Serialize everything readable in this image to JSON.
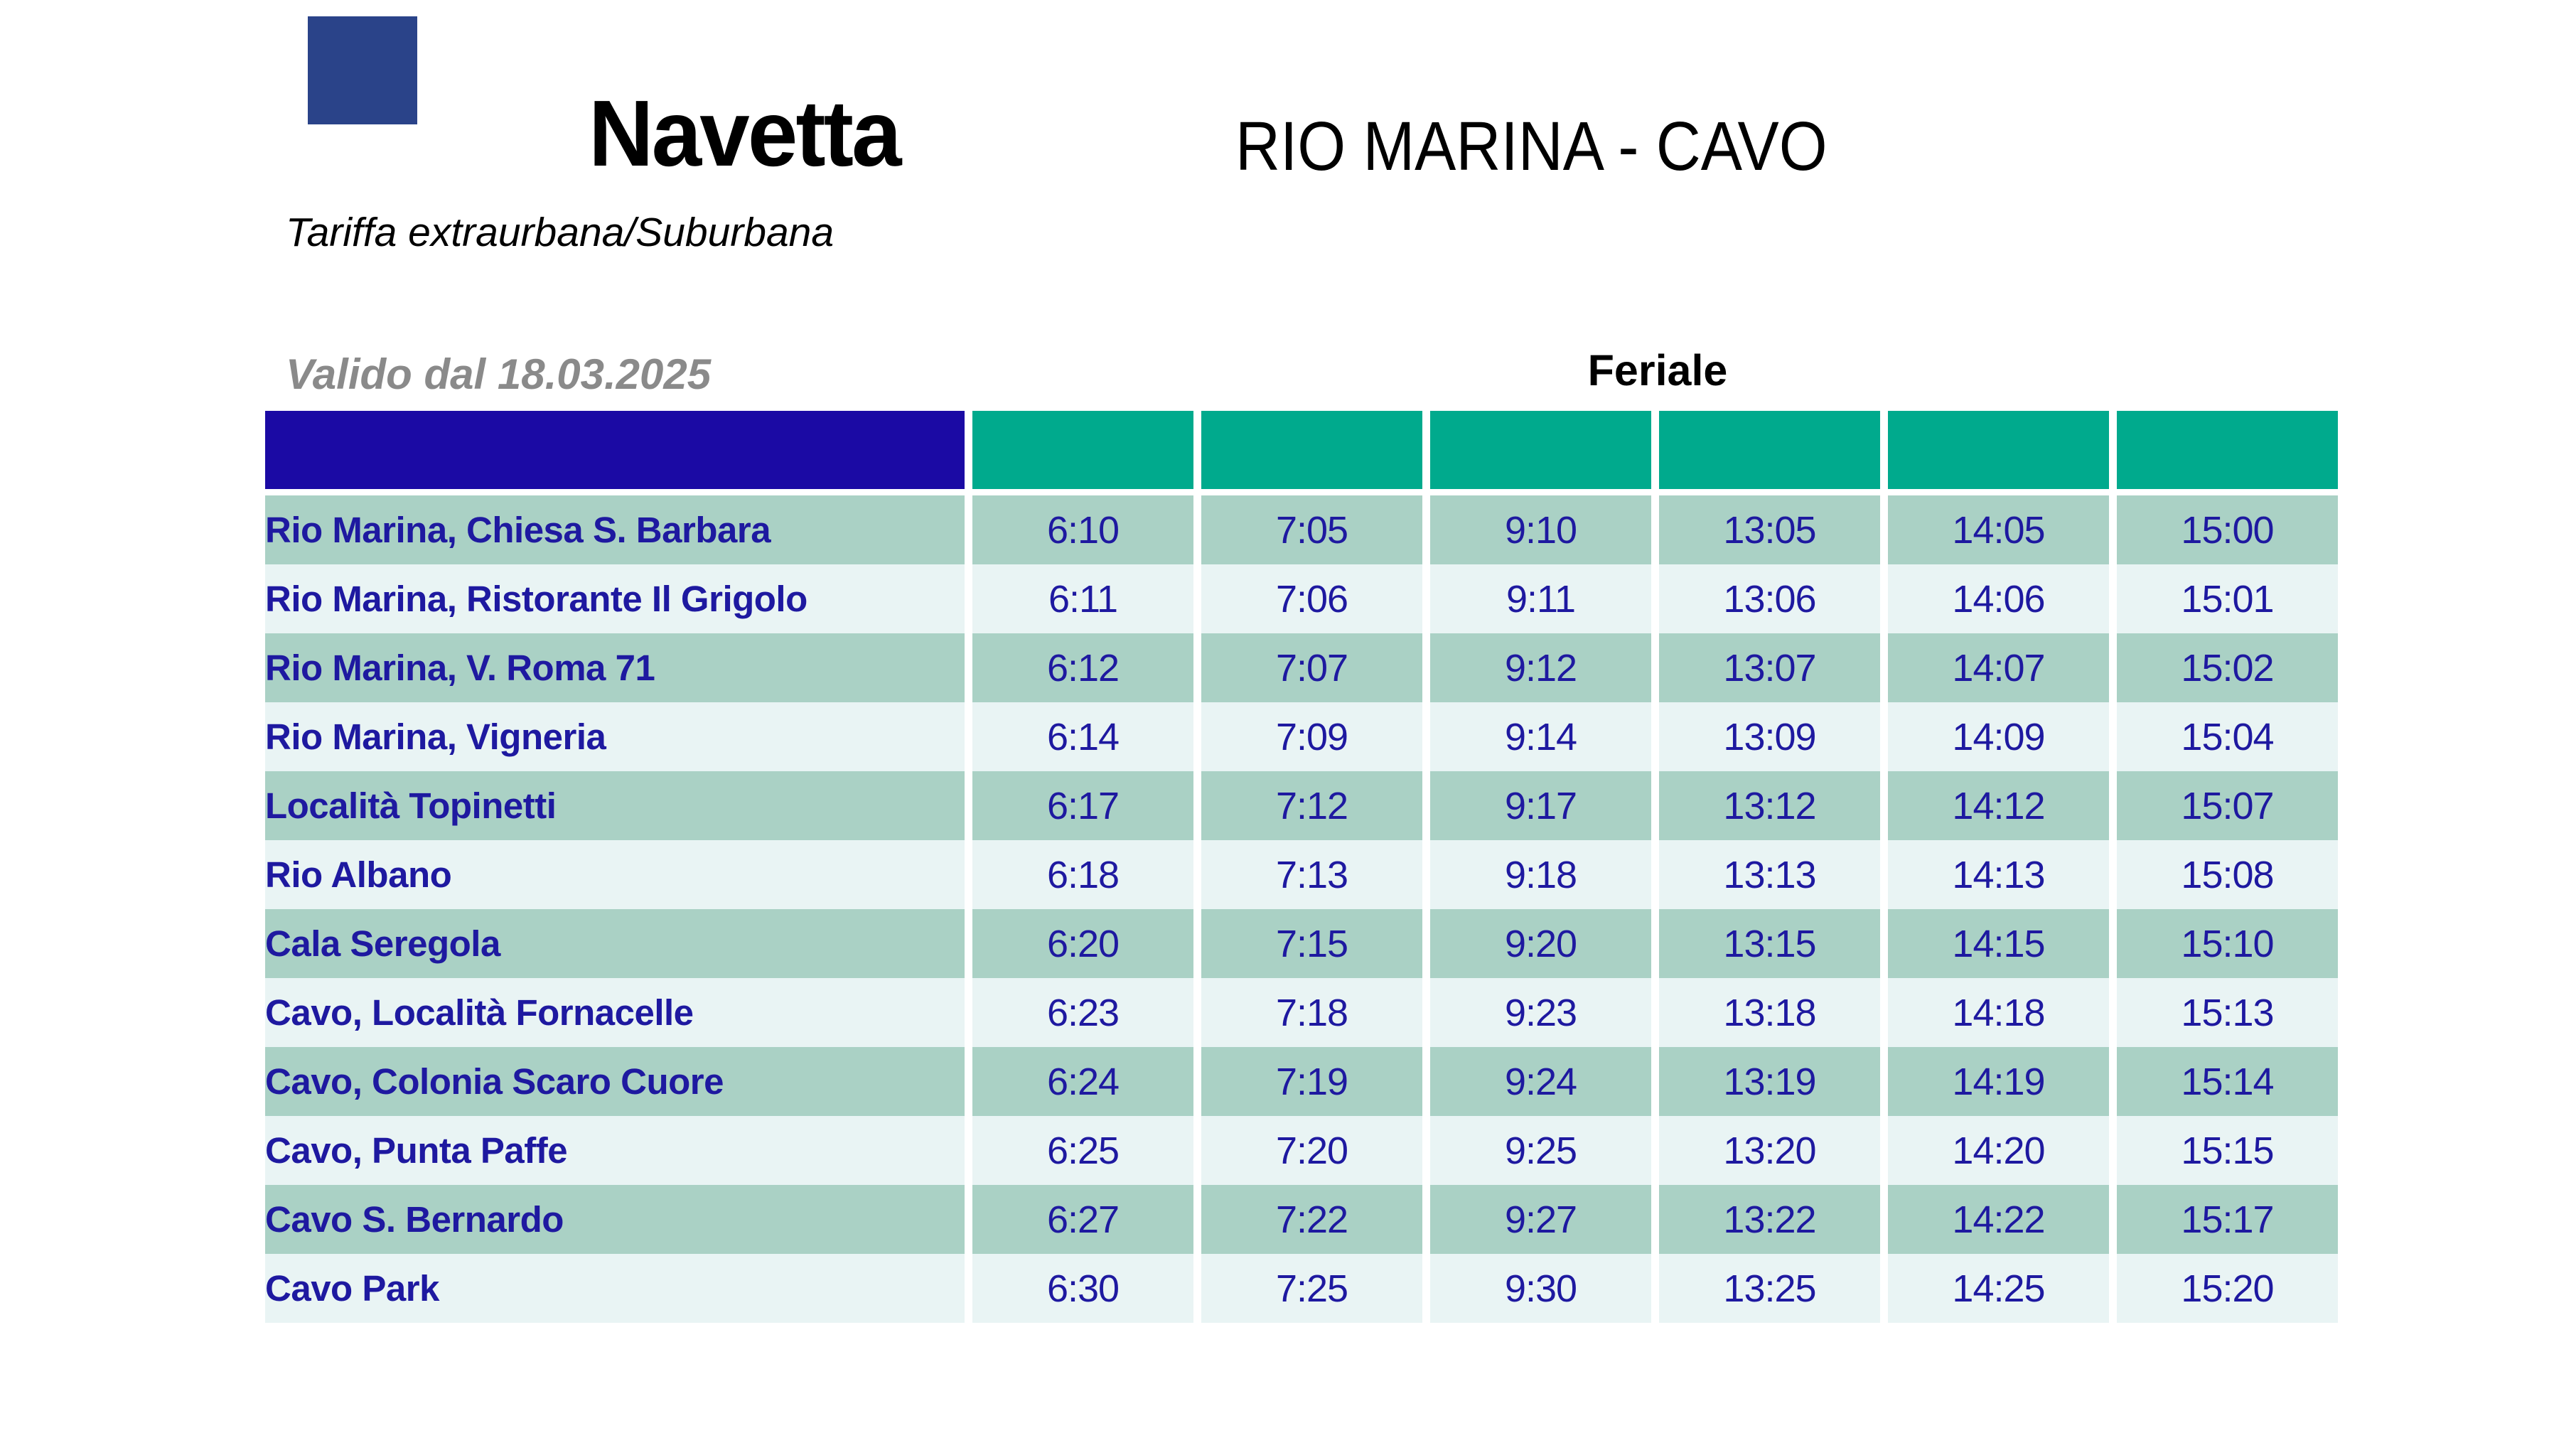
{
  "header": {
    "title": "Navetta",
    "subtitle": "Tariffa extraurbana/Suburbana",
    "route": "RIO MARINA - CAVO",
    "valid_from": "Valido dal 18.03.2025",
    "service_type": "Feriale"
  },
  "colors": {
    "stub_header": "#1B0AA4",
    "time_header": "#00AA8D",
    "row_even": "#AAD1C5",
    "row_odd": "#E9F4F4",
    "text_navy": "#1E19A0",
    "logo_blue": "#2A4389",
    "muted_gray": "#8A8A8A"
  },
  "table": {
    "time_column_headers": [
      "",
      "",
      "",
      "",
      "",
      ""
    ],
    "rows": [
      {
        "stop": "Rio Marina, Chiesa S. Barbara",
        "times": [
          "6:10",
          "7:05",
          "9:10",
          "13:05",
          "14:05",
          "15:00"
        ]
      },
      {
        "stop": "Rio Marina, Ristorante Il Grigolo",
        "times": [
          "6:11",
          "7:06",
          "9:11",
          "13:06",
          "14:06",
          "15:01"
        ]
      },
      {
        "stop": "Rio Marina, V. Roma 71",
        "times": [
          "6:12",
          "7:07",
          "9:12",
          "13:07",
          "14:07",
          "15:02"
        ]
      },
      {
        "stop": "Rio Marina, Vigneria",
        "times": [
          "6:14",
          "7:09",
          "9:14",
          "13:09",
          "14:09",
          "15:04"
        ]
      },
      {
        "stop": "Località Topinetti",
        "times": [
          "6:17",
          "7:12",
          "9:17",
          "13:12",
          "14:12",
          "15:07"
        ]
      },
      {
        "stop": "Rio Albano",
        "times": [
          "6:18",
          "7:13",
          "9:18",
          "13:13",
          "14:13",
          "15:08"
        ]
      },
      {
        "stop": "Cala Seregola",
        "times": [
          "6:20",
          "7:15",
          "9:20",
          "13:15",
          "14:15",
          "15:10"
        ]
      },
      {
        "stop": "Cavo, Località Fornacelle",
        "times": [
          "6:23",
          "7:18",
          "9:23",
          "13:18",
          "14:18",
          "15:13"
        ]
      },
      {
        "stop": "Cavo, Colonia Scaro Cuore",
        "times": [
          "6:24",
          "7:19",
          "9:24",
          "13:19",
          "14:19",
          "15:14"
        ]
      },
      {
        "stop": "Cavo, Punta Paffe",
        "times": [
          "6:25",
          "7:20",
          "9:25",
          "13:20",
          "14:20",
          "15:15"
        ]
      },
      {
        "stop": "Cavo S. Bernardo",
        "times": [
          "6:27",
          "7:22",
          "9:27",
          "13:22",
          "14:22",
          "15:17"
        ]
      },
      {
        "stop": "Cavo Park",
        "times": [
          "6:30",
          "7:25",
          "9:30",
          "13:25",
          "14:25",
          "15:20"
        ]
      }
    ]
  }
}
